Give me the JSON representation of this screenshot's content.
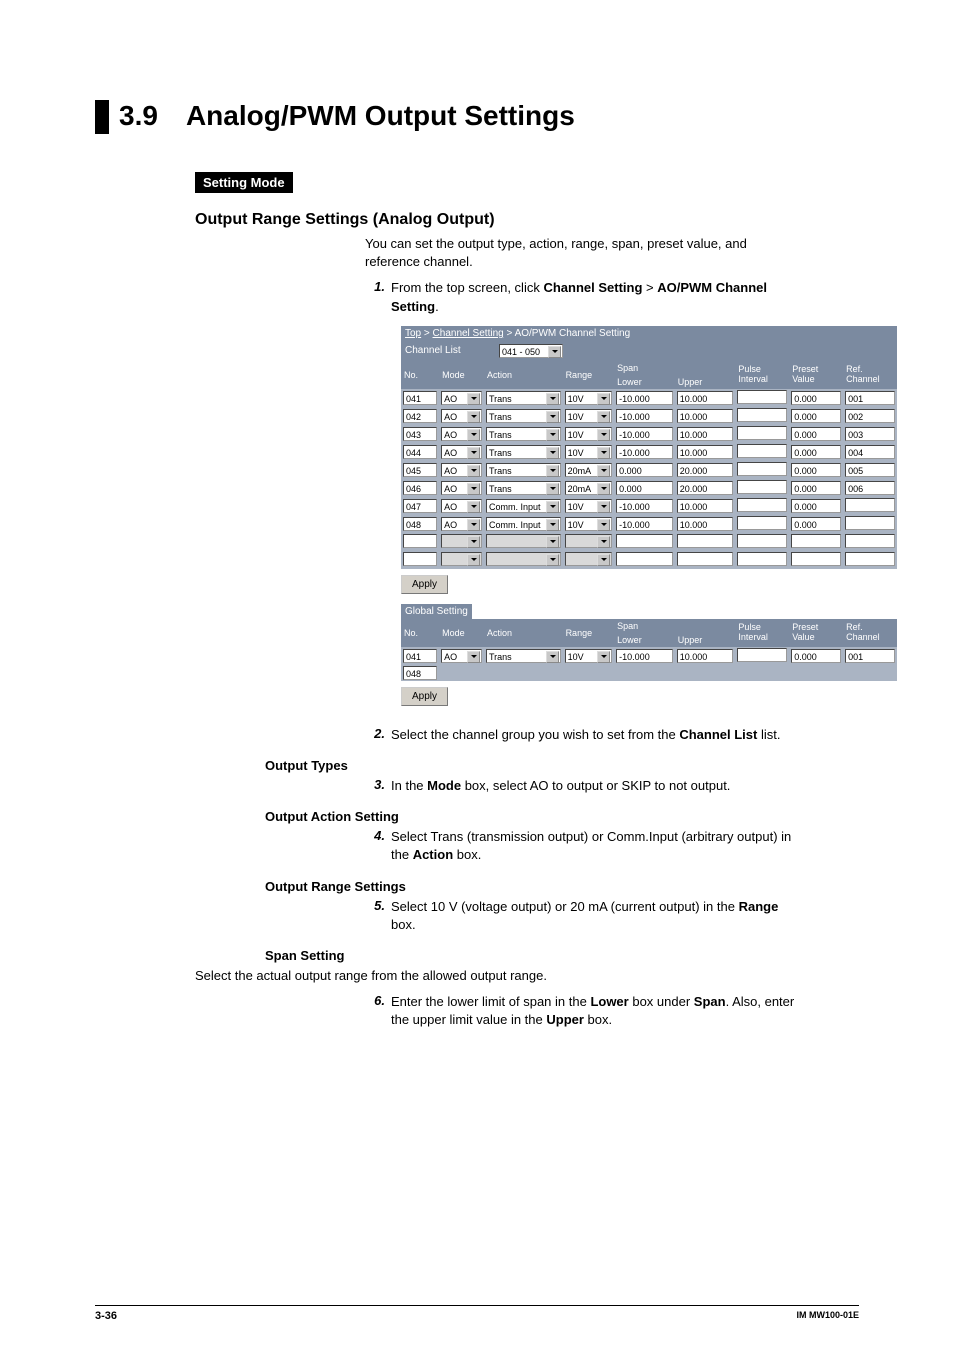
{
  "section": {
    "number": "3.9",
    "title": "Analog/PWM Output Settings"
  },
  "modeBadge": "Setting Mode",
  "h1": "Output Range Settings (Analog Output)",
  "intro": "You can set the output type, action, range, span, preset value, and reference channel.",
  "step1_pre": "From the top screen, click ",
  "step1_b1": "Channel Setting",
  "step1_mid": " > ",
  "step1_b2": "AO/PWM Channel Setting",
  "step1_post": ".",
  "ss": {
    "crumb": {
      "top": "Top",
      "cs": "Channel Setting",
      "leaf": "AO/PWM Channel Setting"
    },
    "chListLabel": "Channel List",
    "chListValue": "041 - 050",
    "headers": [
      "No.",
      "Mode",
      "Action",
      "Range",
      "Lower",
      "Upper",
      "Pulse Interval",
      "Preset Value",
      "Ref. Channel"
    ],
    "spanLabel": "Span",
    "rows": [
      {
        "no": "041",
        "mode": "AO",
        "action": "Trans",
        "range": "10V",
        "lower": "-10.000",
        "upper": "10.000",
        "pulse": "",
        "preset": "0.000",
        "ref": "001"
      },
      {
        "no": "042",
        "mode": "AO",
        "action": "Trans",
        "range": "10V",
        "lower": "-10.000",
        "upper": "10.000",
        "pulse": "",
        "preset": "0.000",
        "ref": "002"
      },
      {
        "no": "043",
        "mode": "AO",
        "action": "Trans",
        "range": "10V",
        "lower": "-10.000",
        "upper": "10.000",
        "pulse": "",
        "preset": "0.000",
        "ref": "003"
      },
      {
        "no": "044",
        "mode": "AO",
        "action": "Trans",
        "range": "10V",
        "lower": "-10.000",
        "upper": "10.000",
        "pulse": "",
        "preset": "0.000",
        "ref": "004"
      },
      {
        "no": "045",
        "mode": "AO",
        "action": "Trans",
        "range": "20mA",
        "lower": "0.000",
        "upper": "20.000",
        "pulse": "",
        "preset": "0.000",
        "ref": "005"
      },
      {
        "no": "046",
        "mode": "AO",
        "action": "Trans",
        "range": "20mA",
        "lower": "0.000",
        "upper": "20.000",
        "pulse": "",
        "preset": "0.000",
        "ref": "006"
      },
      {
        "no": "047",
        "mode": "AO",
        "action": "Comm. Input",
        "range": "10V",
        "lower": "-10.000",
        "upper": "10.000",
        "pulse": "",
        "preset": "0.000",
        "ref": ""
      },
      {
        "no": "048",
        "mode": "AO",
        "action": "Comm. Input",
        "range": "10V",
        "lower": "-10.000",
        "upper": "10.000",
        "pulse": "",
        "preset": "0.000",
        "ref": ""
      }
    ],
    "emptyRows": 2,
    "apply": "Apply",
    "globalSetting": "Global Setting",
    "gRow": {
      "no": "041",
      "mode": "AO",
      "action": "Trans",
      "range": "10V",
      "lower": "-10.000",
      "upper": "10.000",
      "pulse": "",
      "preset": "0.000",
      "ref": "001"
    },
    "gRow2No": "048"
  },
  "step2_pre": "Select the channel group you wish to set from the ",
  "step2_b": "Channel List",
  "step2_post": " list.",
  "h2": "Output Types",
  "step3_pre": "In the ",
  "step3_b": "Mode",
  "step3_post": " box, select AO to output or SKIP to not output.",
  "h3": "Output Action Setting",
  "step4_pre": "Select Trans (transmission output) or Comm.Input (arbitrary output) in the ",
  "step4_b": "Action",
  "step4_post": " box.",
  "h4": "Output Range Settings",
  "step5_pre": "Select 10 V (voltage output) or 20 mA (current output) in the ",
  "step5_b": "Range",
  "step5_post": " box.",
  "h5": "Span Setting",
  "spanIntro": "Select the actual output range from the allowed output range.",
  "step6_pre": "Enter the lower limit of span in the ",
  "step6_b1": "Lower",
  "step6_mid1": " box under ",
  "step6_b2": "Span",
  "step6_mid2": ". Also, enter the upper limit value in the ",
  "step6_b3": "Upper",
  "step6_post": " box.",
  "footer": {
    "page": "3-36",
    "doc": "IM MW100-01E"
  },
  "colors": {
    "headerBg": "#7b8aa0",
    "rowBg": "#aab4c3",
    "btnBg": "#d4d0c8"
  }
}
